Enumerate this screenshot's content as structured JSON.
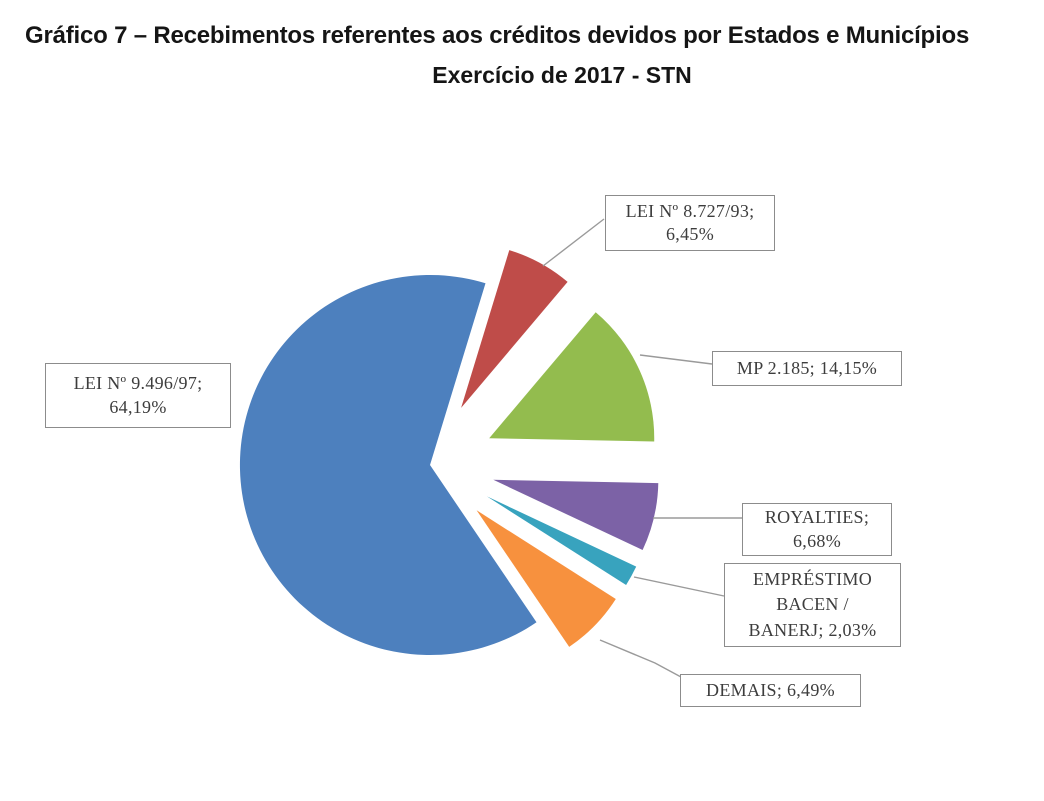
{
  "title": {
    "line1": "Gráfico 7 – Recebimentos referentes aos créditos devidos por Estados e Municípios",
    "line2": "Exercício de 2017 - STN"
  },
  "chart_data": {
    "type": "pie",
    "title": "Gráfico 7 – Recebimentos referentes aos créditos devidos por Estados e Municípios Exercício de 2017 - STN",
    "legend_position": "none",
    "labels_style": "boxed callout labels with leader lines",
    "start_angle_deg": -55.9,
    "direction": "clockwise",
    "slices": [
      {
        "name": "LEI Nº 9.496/97",
        "value_pct": 64.19,
        "color": "#4D80BE",
        "exploded": false
      },
      {
        "name": "LEI Nº 8.727/93",
        "value_pct": 6.45,
        "color": "#BF4C49",
        "exploded": true
      },
      {
        "name": "MP 2.185",
        "value_pct": 14.15,
        "color": "#93BC4E",
        "exploded": true
      },
      {
        "name": "ROYALTIES",
        "value_pct": 6.68,
        "color": "#7C62A6",
        "exploded": true
      },
      {
        "name": "EMPRÉSTIMO BACEN / BANERJ",
        "value_pct": 2.03,
        "color": "#38A3BE",
        "exploded": true
      },
      {
        "name": "DEMAIS",
        "value_pct": 6.49,
        "color": "#F7913E",
        "exploded": true
      }
    ]
  },
  "labels": {
    "blue": {
      "lines": [
        "LEI Nº 9.496/97;",
        "64,19%"
      ]
    },
    "red": {
      "lines": [
        "LEI Nº 8.727/93;",
        "6,45%"
      ]
    },
    "green": {
      "lines": [
        "MP 2.185; 14,15%"
      ]
    },
    "purple": {
      "lines": [
        "ROYALTIES;",
        "6,68%"
      ]
    },
    "teal": {
      "lines": [
        "EMPRÉSTIMO",
        "BACEN /",
        "BANERJ; 2,03%"
      ]
    },
    "orange": {
      "lines": [
        "DEMAIS; 6,49%"
      ]
    }
  },
  "colors": {
    "title_text": "#151515",
    "label_text": "#3d3d3d",
    "label_border": "#8c8c8c",
    "leader_line": "#9a9a9a",
    "background": "#ffffff"
  }
}
